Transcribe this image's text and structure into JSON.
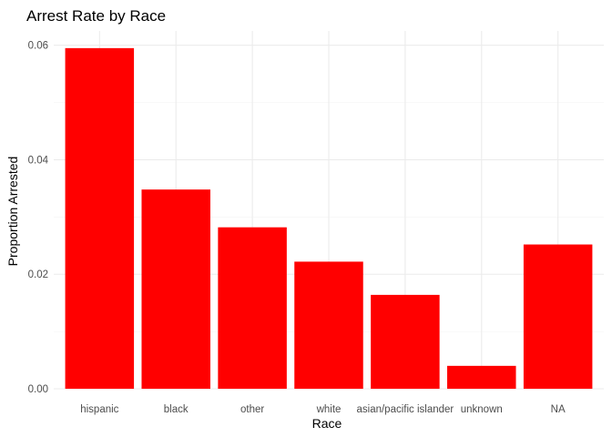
{
  "chart_data": {
    "type": "bar",
    "title": "Arrest Rate by Race",
    "xlabel": "Race",
    "ylabel": "Proportion Arrested",
    "categories": [
      "hispanic",
      "black",
      "other",
      "white",
      "asian/pacific islander",
      "unknown",
      "NA"
    ],
    "values": [
      0.0595,
      0.0348,
      0.0282,
      0.0222,
      0.0164,
      0.004,
      0.0252
    ],
    "ylim": [
      0,
      0.0625
    ],
    "y_ticks": [
      0.0,
      0.02,
      0.04,
      0.06
    ],
    "y_tick_labels": [
      "0.00",
      "0.02",
      "0.04",
      "0.06"
    ],
    "y_minor_ticks": [
      0.01,
      0.03,
      0.05
    ],
    "bar_color": "#ff0000",
    "grid": true,
    "legend": "none"
  }
}
